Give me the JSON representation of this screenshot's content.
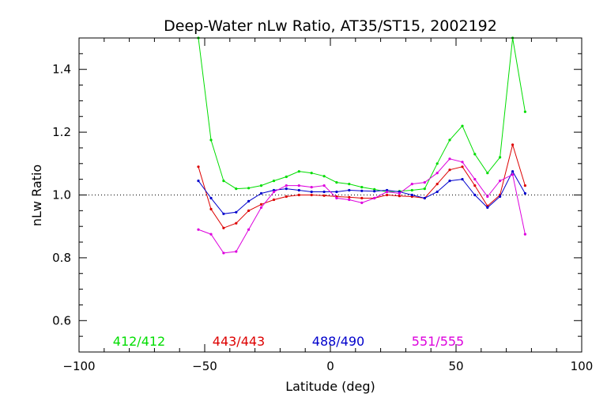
{
  "chart_data": {
    "type": "line",
    "title": "Deep-Water nLw Ratio, AT35/ST15, 2002192",
    "xlabel": "Latitude (deg)",
    "ylabel": "nLw Ratio",
    "xlim": [
      -100,
      100
    ],
    "ylim": [
      0.5,
      1.5
    ],
    "xticks": [
      -100,
      -50,
      0,
      50,
      100
    ],
    "xtick_labels": [
      "−100",
      "−50",
      "0",
      "50",
      "100"
    ],
    "yticks": [
      0.6,
      0.8,
      1.0,
      1.2,
      1.4
    ],
    "ytick_labels": [
      "0.6",
      "0.8",
      "1.0",
      "1.2",
      "1.4"
    ],
    "reference_line": 1.0,
    "grid": false,
    "legend_position": "bottom",
    "x": [
      -52.5,
      -47.5,
      -42.5,
      -37.5,
      -32.5,
      -27.5,
      -22.5,
      -17.5,
      -12.5,
      -7.5,
      -2.5,
      2.5,
      7.5,
      12.5,
      17.5,
      22.5,
      27.5,
      32.5,
      37.5,
      42.5,
      47.5,
      52.5,
      57.5,
      62.5,
      67.5,
      72.5,
      77.5
    ],
    "series": [
      {
        "name": "412/412",
        "color": "#00dd00",
        "values": [
          1.5,
          1.175,
          1.045,
          1.02,
          1.022,
          1.03,
          1.045,
          1.058,
          1.075,
          1.07,
          1.06,
          1.04,
          1.035,
          1.025,
          1.018,
          1.01,
          1.012,
          1.015,
          1.02,
          1.1,
          1.175,
          1.22,
          1.13,
          1.07,
          1.12,
          1.5,
          1.265
        ]
      },
      {
        "name": "443/443",
        "color": "#dd0000",
        "values": [
          1.09,
          0.955,
          0.895,
          0.91,
          0.95,
          0.97,
          0.985,
          0.995,
          1.0,
          1.0,
          0.998,
          0.995,
          0.993,
          0.99,
          0.99,
          1.0,
          0.997,
          0.995,
          0.99,
          1.035,
          1.08,
          1.09,
          1.03,
          0.965,
          1.0,
          1.16,
          1.03
        ]
      },
      {
        "name": "488/490",
        "color": "#0000cc",
        "values": [
          1.045,
          0.99,
          0.94,
          0.945,
          0.98,
          1.005,
          1.015,
          1.02,
          1.015,
          1.01,
          1.01,
          1.01,
          1.015,
          1.013,
          1.012,
          1.015,
          1.01,
          1.0,
          0.99,
          1.01,
          1.045,
          1.05,
          1.0,
          0.96,
          0.995,
          1.075,
          1.005
        ]
      },
      {
        "name": "551/555",
        "color": "#dd00dd",
        "values": [
          0.89,
          0.875,
          0.815,
          0.82,
          0.89,
          0.96,
          1.01,
          1.03,
          1.03,
          1.025,
          1.03,
          0.99,
          0.985,
          0.975,
          0.99,
          1.01,
          1.005,
          1.035,
          1.04,
          1.07,
          1.115,
          1.105,
          1.05,
          0.995,
          1.045,
          1.065,
          0.875
        ]
      }
    ]
  }
}
